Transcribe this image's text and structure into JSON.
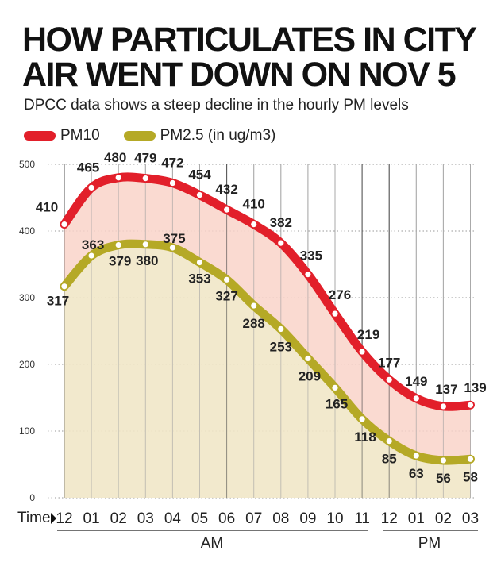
{
  "title_line1": "HOW PARTICULATES IN CITY",
  "title_line2": "AIR WENT DOWN ON NOV 5",
  "subtitle": "DPCC data shows a steep decline in the hourly PM levels",
  "colors": {
    "pm10": "#e21f2a",
    "pm25": "#b5a926",
    "pm10_fill": "#f9d3c9",
    "pm25_fill": "#f1e7c8"
  },
  "chart_data": {
    "type": "area",
    "title": "HOW PARTICULATES IN CITY AIR WENT DOWN ON NOV 5",
    "subtitle": "DPCC data shows a steep decline in the hourly PM levels",
    "xlabel": "Time",
    "ylabel": "",
    "x": [
      "12",
      "01",
      "02",
      "03",
      "04",
      "05",
      "06",
      "07",
      "08",
      "09",
      "10",
      "11",
      "12",
      "01",
      "02",
      "03"
    ],
    "series": [
      {
        "name": "PM10",
        "values": [
          410,
          465,
          480,
          479,
          472,
          454,
          432,
          410,
          382,
          335,
          276,
          219,
          177,
          149,
          137,
          139
        ]
      },
      {
        "name": "PM2.5 (in ug/m3)",
        "values": [
          317,
          363,
          379,
          380,
          375,
          353,
          327,
          288,
          253,
          209,
          165,
          118,
          85,
          63,
          56,
          58
        ]
      }
    ],
    "ylim": [
      0,
      500
    ],
    "yticks": [
      0,
      100,
      200,
      300,
      400,
      500
    ],
    "periods": [
      {
        "label": "AM"
      },
      {
        "label": "PM"
      }
    ],
    "grid": true,
    "legend_position": "top-left"
  }
}
